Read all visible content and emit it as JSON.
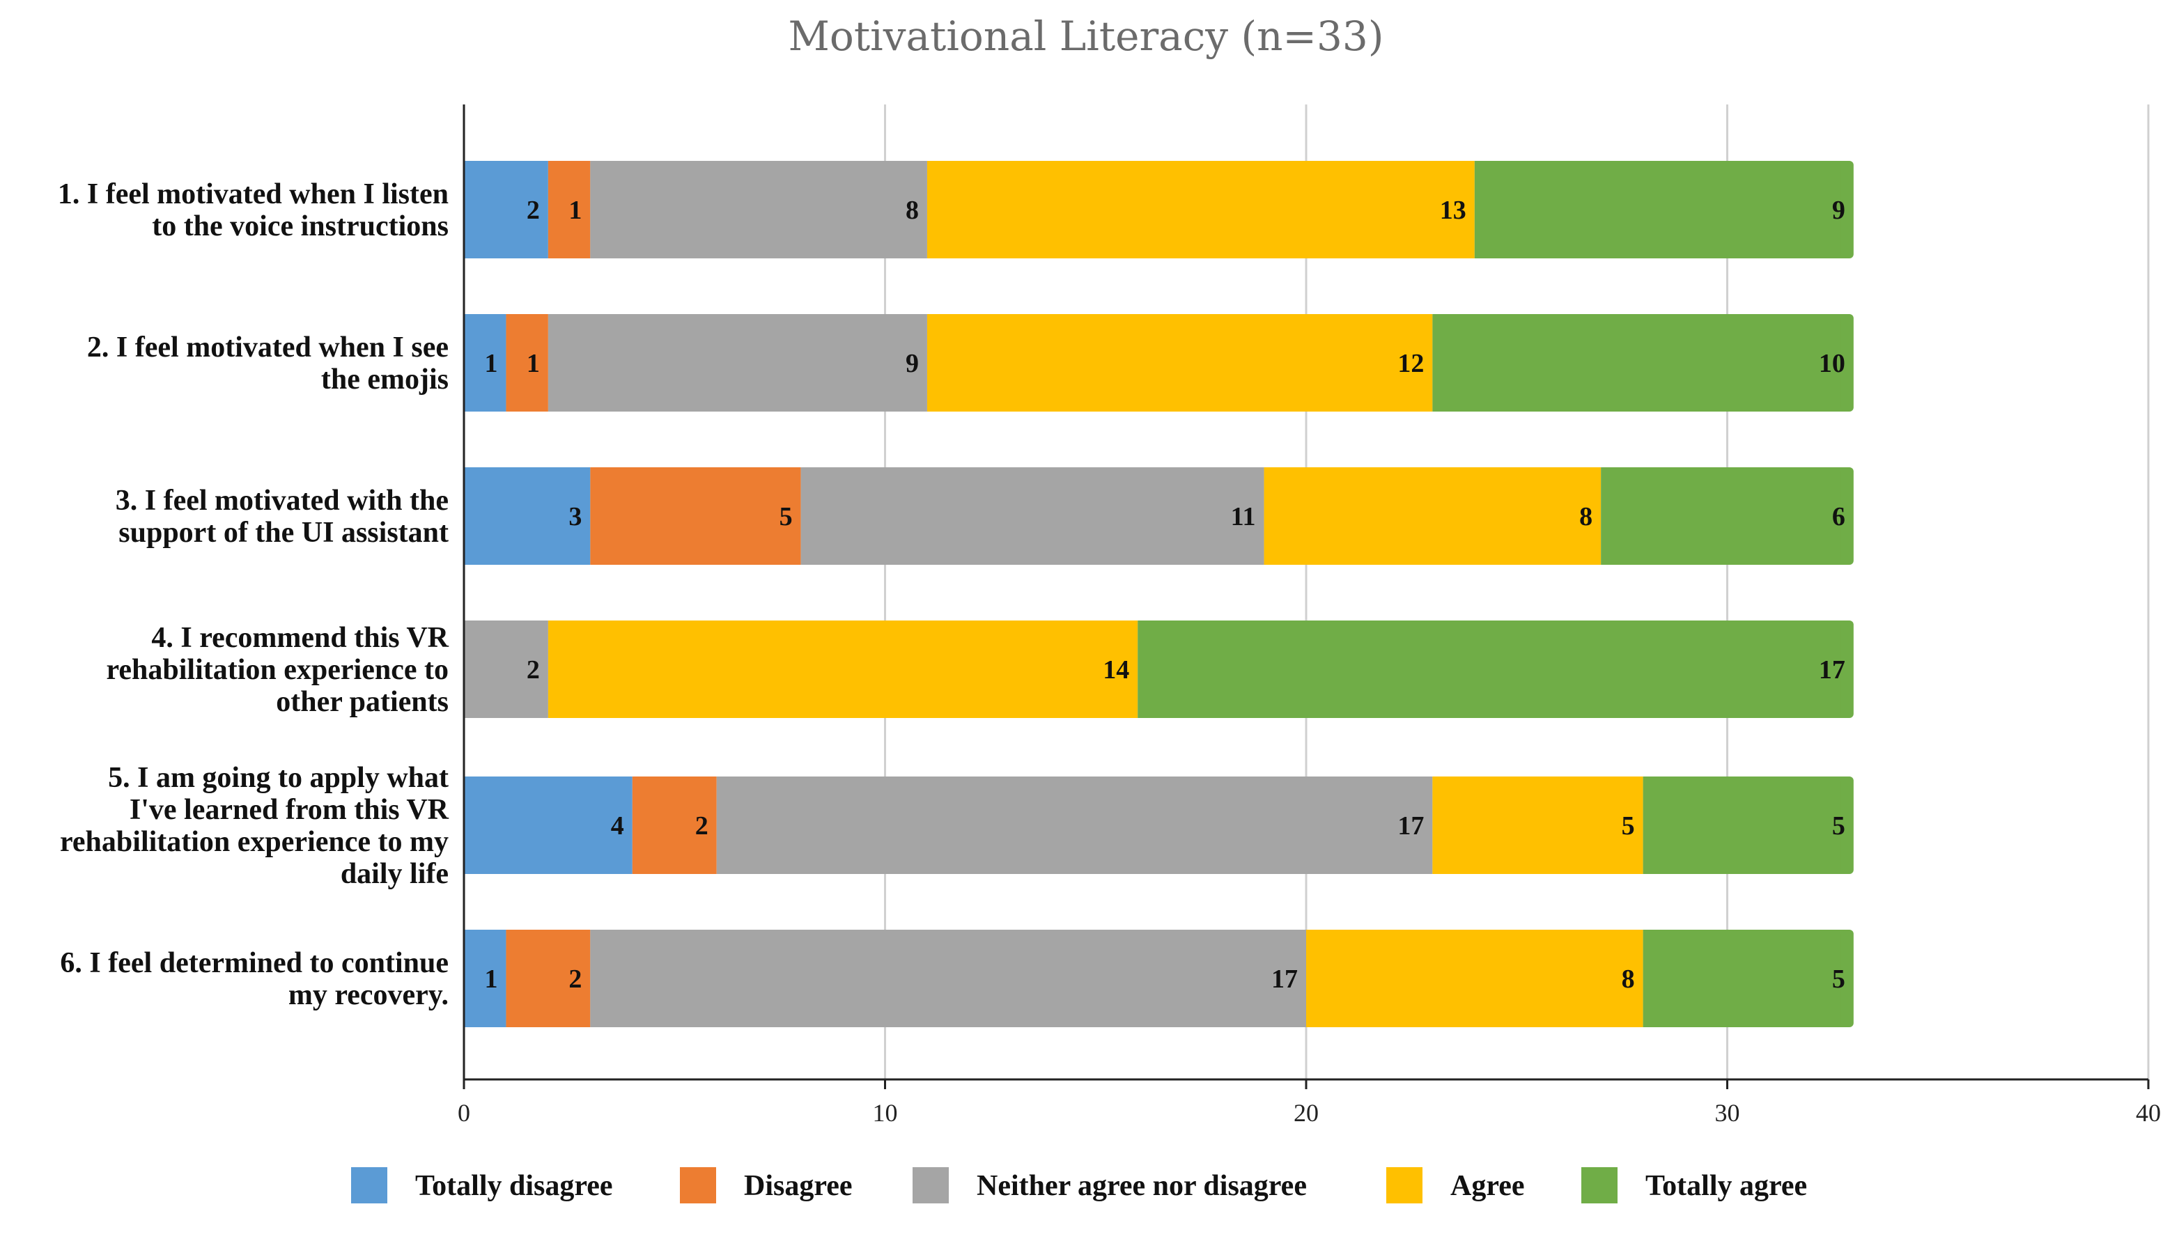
{
  "chart_data": {
    "type": "bar",
    "orientation": "horizontal",
    "stacked": true,
    "title": "Motivational Literacy (n=33)",
    "xlabel": "",
    "ylabel": "",
    "xlim": [
      0,
      40
    ],
    "x_ticks": [
      "0",
      "10",
      "20",
      "30",
      "40"
    ],
    "grid": true,
    "legend_position": "bottom",
    "categories": [
      [
        "1. I feel motivated when I listen",
        "to the voice instructions"
      ],
      [
        "2. I feel motivated when I see",
        "the emojis"
      ],
      [
        "3. I feel motivated with the",
        "support of the UI assistant"
      ],
      [
        "4. I recommend this VR",
        "rehabilitation experience to",
        "other patients"
      ],
      [
        "5. I am going to apply what",
        "I've learned from this VR",
        "rehabilitation experience to my",
        "daily life"
      ],
      [
        "6. I feel determined to continue",
        "my recovery."
      ]
    ],
    "series": [
      {
        "name": "Totally disagree",
        "color": "#5b9bd5",
        "values": [
          2,
          1,
          3,
          0,
          4,
          1
        ]
      },
      {
        "name": "Disagree",
        "color": "#ed7d31",
        "values": [
          1,
          1,
          5,
          0,
          2,
          2
        ]
      },
      {
        "name": "Neither agree nor disagree",
        "color": "#a5a5a5",
        "values": [
          8,
          9,
          11,
          2,
          17,
          17
        ]
      },
      {
        "name": "Agree",
        "color": "#ffc000",
        "values": [
          13,
          12,
          8,
          14,
          5,
          8
        ]
      },
      {
        "name": "Totally agree",
        "color": "#70ad47",
        "values": [
          9,
          10,
          6,
          17,
          5,
          5
        ]
      }
    ]
  }
}
